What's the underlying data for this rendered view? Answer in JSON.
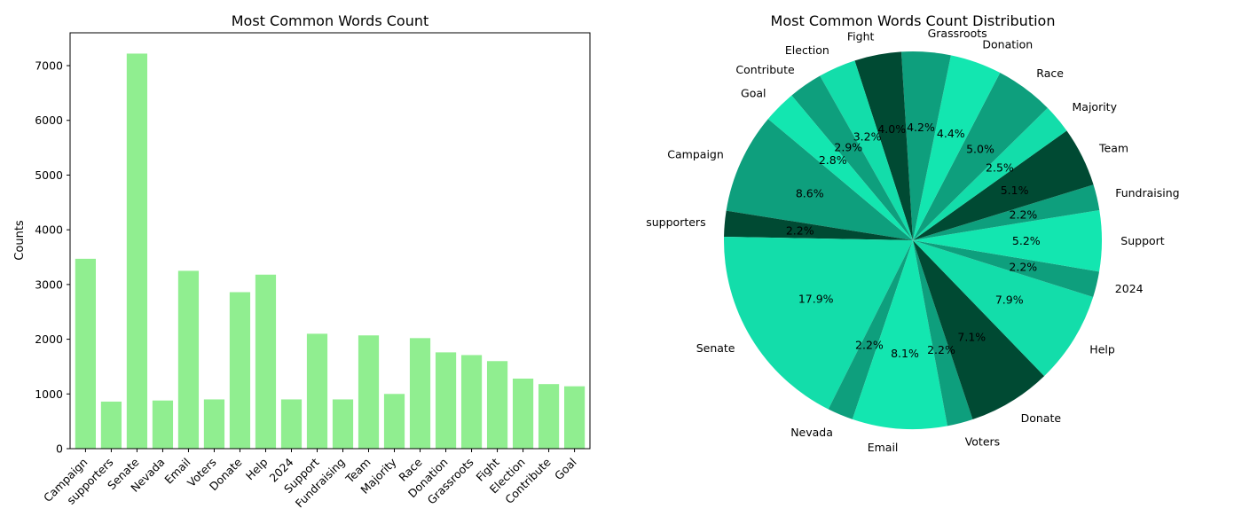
{
  "chart_data": [
    {
      "type": "bar",
      "title": "Most Common Words Count",
      "xlabel": "",
      "ylabel": "Counts",
      "ylim": [
        0,
        7600
      ],
      "yticks": [
        "0",
        "1000",
        "2000",
        "3000",
        "4000",
        "5000",
        "6000",
        "7000"
      ],
      "ytick_values": [
        0,
        1000,
        2000,
        3000,
        4000,
        5000,
        6000,
        7000
      ],
      "bar_color": "#90ee90",
      "categories": [
        "Campaign",
        "supporters",
        "Senate",
        "Nevada",
        "Email",
        "Voters",
        "Donate",
        "Help",
        "2024",
        "Support",
        "Fundraising",
        "Team",
        "Majority",
        "Race",
        "Donation",
        "Grassroots",
        "Fight",
        "Election",
        "Contribute",
        "Goal"
      ],
      "values": [
        3470,
        860,
        7220,
        880,
        3250,
        900,
        2860,
        3180,
        900,
        2100,
        900,
        2070,
        1000,
        2020,
        1760,
        1710,
        1600,
        1280,
        1180,
        1140
      ]
    },
    {
      "type": "pie",
      "title": "Most Common Words Count Distribution",
      "colors": [
        "#0e9f7d",
        "#004a33",
        "#13ddaa",
        "#0e9f7d",
        "#13e6b0",
        "#0e9f7d",
        "#004a33",
        "#13ddaa",
        "#0e9f7d",
        "#13e6b0",
        "#0e9f7d",
        "#004a33",
        "#13ddaa",
        "#0e9f7d",
        "#13e6b0",
        "#0e9f7d",
        "#004a33",
        "#13ddaa",
        "#0e9f7d",
        "#13e6b0"
      ],
      "labels": [
        "Campaign",
        "supporters",
        "Senate",
        "Nevada",
        "Email",
        "Voters",
        "Donate",
        "Help",
        "2024",
        "Support",
        "Fundraising",
        "Team",
        "Majority",
        "Race",
        "Donation",
        "Grassroots",
        "Fight",
        "Election",
        "Contribute",
        "Goal"
      ],
      "percents": [
        8.6,
        2.2,
        17.9,
        2.2,
        8.1,
        2.2,
        7.1,
        7.9,
        2.2,
        5.2,
        2.2,
        5.1,
        2.5,
        5.0,
        4.4,
        4.2,
        4.0,
        3.2,
        2.9,
        2.8
      ],
      "pct_labels": [
        "8.6%",
        "2.2%",
        "17.9%",
        "2.2%",
        "8.1%",
        "2.2%",
        "7.1%",
        "7.9%",
        "2.2%",
        "5.2%",
        "2.2%",
        "5.1%",
        "2.5%",
        "5.0%",
        "4.4%",
        "4.2%",
        "4.0%",
        "3.2%",
        "2.9%",
        "2.8%"
      ],
      "start_angle_deg": 140,
      "direction": "counterclockwise"
    }
  ]
}
